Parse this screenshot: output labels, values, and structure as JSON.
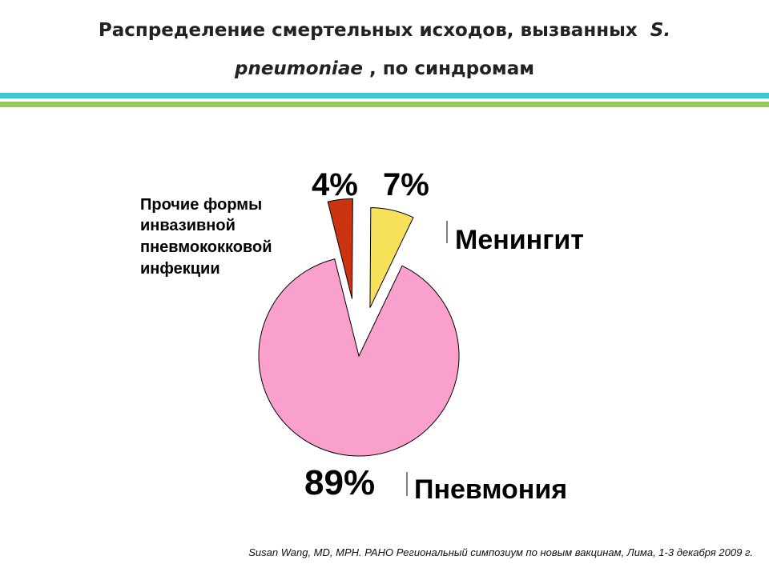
{
  "title": {
    "line1": "Распределение  смертельных исходов,  вызванных",
    "line1_italic": "S.",
    "line2_italic": "pneumoniae",
    "line2": ", по синдромам"
  },
  "colors": {
    "band_teal": "#3cc6d2",
    "band_green": "#92cc50",
    "other": "#cc3311",
    "meningitis": "#f7e05a",
    "pneumonia": "#f9a0cc"
  },
  "chart_data": {
    "type": "pie",
    "slices": [
      {
        "label": "Прочие формы инвазивной пневмококковой инфекции",
        "value": 4,
        "value_label": "4%",
        "color": "#cc3311"
      },
      {
        "label": "Менингит",
        "value": 7,
        "value_label": "7%",
        "color": "#f7e05a"
      },
      {
        "label": "Пневмония",
        "value": 89,
        "value_label": "89%",
        "color": "#f9a0cc"
      }
    ],
    "exploded": true,
    "other_label_lines": [
      "Прочие формы",
      "инвазивной",
      "пневмококковой",
      "инфекции"
    ]
  },
  "citation": "Susan Wang, MD, MPH. PAHO Региональный симпозиум по новым вакцинам, Лима, 1-3 декабря 2009 г."
}
